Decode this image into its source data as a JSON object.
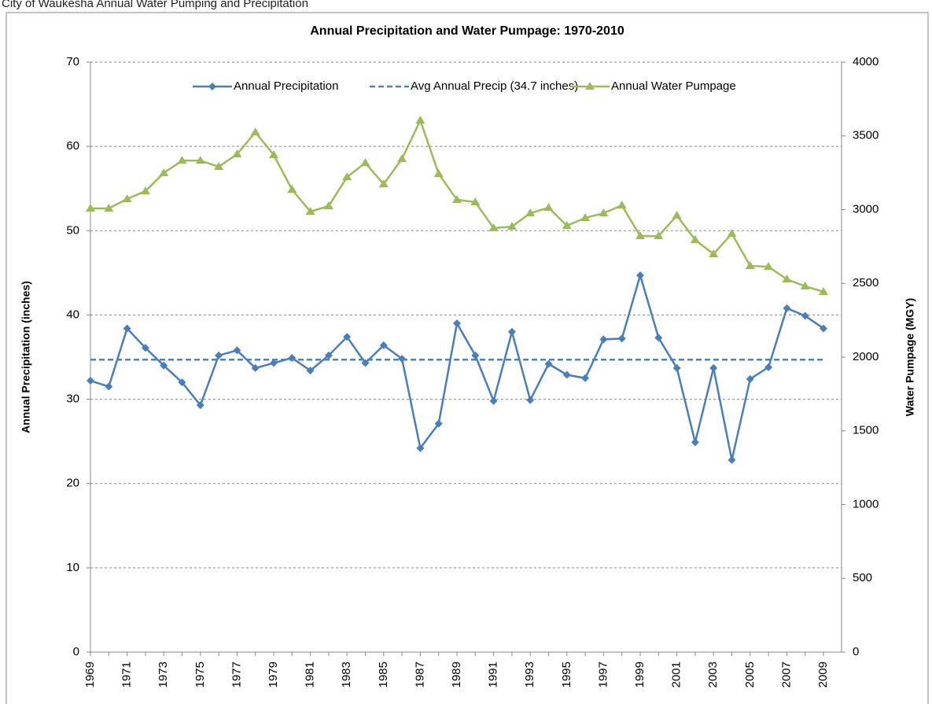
{
  "page_title": "City of Waukesha Annual Water Pumping and Precipitation",
  "chart_data": {
    "type": "line",
    "title": "Annual Precipitation and Water Pumpage: 1970-2010",
    "y_label": "Annual Precipitation (inches)",
    "y2_label": "Water Pumpage (MGY)",
    "categories": [
      "1969",
      null,
      "1971",
      null,
      "1973",
      null,
      "1975",
      null,
      "1977",
      null,
      "1979",
      null,
      "1981",
      null,
      "1983",
      null,
      "1985",
      null,
      "1987",
      null,
      "1989",
      null,
      "1991",
      null,
      "1993",
      null,
      "1995",
      null,
      "1997",
      null,
      "1999",
      null,
      "2001",
      null,
      "2003",
      null,
      "2005",
      null,
      "2007",
      null,
      "2009"
    ],
    "series": [
      {
        "name": "Annual Precipitation",
        "color": "#4a7ebb",
        "marker": "diamond",
        "axis": "y",
        "values": [
          32.2,
          31.5,
          38.4,
          36.1,
          34.0,
          32.0,
          29.3,
          35.2,
          35.8,
          33.7,
          34.3,
          34.9,
          33.4,
          35.2,
          37.4,
          34.3,
          36.4,
          34.8,
          24.2,
          27.1,
          39.0,
          35.2,
          29.8,
          38.0,
          29.9,
          34.2,
          32.9,
          32.5,
          37.1,
          37.2,
          44.7,
          37.3,
          33.7,
          24.9,
          33.7,
          22.8,
          32.4,
          33.8,
          40.8,
          39.9,
          38.4
        ]
      },
      {
        "name": "Avg Annual Precip (34.7 inches)",
        "color": "#4f81bd",
        "dashed": true,
        "axis": "y",
        "values": [
          34.7,
          34.7,
          34.7,
          34.7,
          34.7,
          34.7,
          34.7,
          34.7,
          34.7,
          34.7,
          34.7,
          34.7,
          34.7,
          34.7,
          34.7,
          34.7,
          34.7,
          34.7,
          34.7,
          34.7,
          34.7,
          34.7,
          34.7,
          34.7,
          34.7,
          34.7,
          34.7,
          34.7,
          34.7,
          34.7,
          34.7,
          34.7,
          34.7,
          34.7,
          34.7,
          34.7,
          34.7,
          34.7,
          34.7,
          34.7,
          34.7
        ]
      },
      {
        "name": "Annual Water Pumpage",
        "color": "#9bbb59",
        "marker": "triangle",
        "axis": "y2",
        "values": [
          3008,
          3008,
          3072,
          3125,
          3248,
          3333,
          3333,
          3291,
          3376,
          3525,
          3371,
          3136,
          2987,
          3024,
          3221,
          3317,
          3173,
          3344,
          3605,
          3243,
          3067,
          3051,
          2875,
          2885,
          2976,
          3013,
          2891,
          2944,
          2976,
          3029,
          2821,
          2821,
          2960,
          2795,
          2699,
          2837,
          2619,
          2613,
          2528,
          2480,
          2443
        ]
      }
    ],
    "ylim": [
      0,
      70
    ],
    "yticks": [
      0,
      10,
      20,
      30,
      40,
      50,
      60,
      70
    ],
    "y2lim": [
      0,
      4000
    ],
    "y2ticks": [
      0,
      500,
      1000,
      1500,
      2000,
      2500,
      3000,
      3500,
      4000
    ],
    "grid": true,
    "legend": "top-right"
  }
}
